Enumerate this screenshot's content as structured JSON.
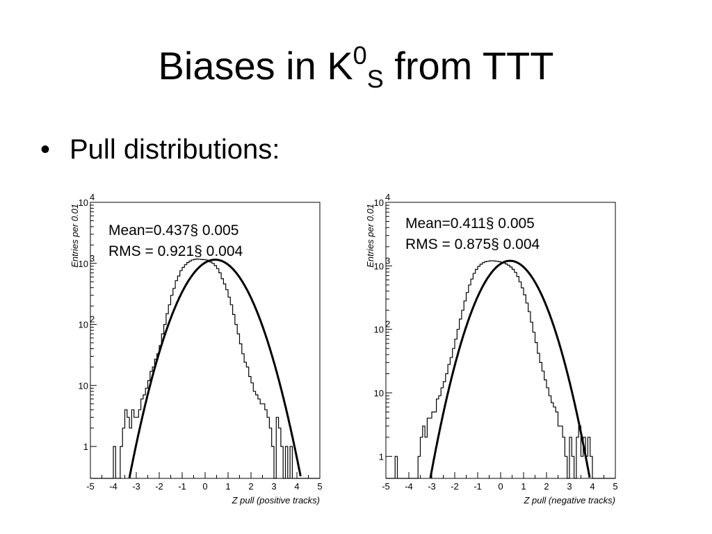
{
  "slide": {
    "title_main": "Biases in K",
    "title_sup": "0",
    "title_sub": "S",
    "title_tail": " from TTT",
    "bullet": "Pull distributions:"
  },
  "chart_data": [
    {
      "type": "line",
      "title": "",
      "xlabel": "Z pull  (positive tracks)",
      "ylabel": "Entries per 0.01",
      "xlim": [
        -5,
        5
      ],
      "ylim": [
        0.3,
        10000
      ],
      "yscale": "log",
      "xticks": [
        -5,
        -4,
        -3,
        -2,
        -1,
        0,
        1,
        2,
        3,
        4,
        5
      ],
      "yticks": [
        {
          "value": 1,
          "label": "1"
        },
        {
          "value": 10,
          "label": "10"
        },
        {
          "value": 100,
          "label": "10",
          "exp": "2"
        },
        {
          "value": 1000,
          "label": "10",
          "exp": "3"
        },
        {
          "value": 10000,
          "label": "10",
          "exp": "4"
        }
      ],
      "stats": [
        "Mean=0.437§ 0.005",
        "RMS = 0.921§ 0.004"
      ],
      "fit": {
        "mean": 0.437,
        "sigma": 0.921,
        "peak": 1150
      },
      "series": [
        {
          "kind": "histogram",
          "x": [
            -5.0,
            -4.0,
            -3.9,
            -3.7,
            -3.6,
            -3.5,
            -3.4,
            -3.3,
            -3.2,
            -3.1,
            -3.0,
            -2.9,
            -2.8,
            -2.7,
            -2.6,
            -2.5,
            -2.4,
            -2.3,
            -2.2,
            -2.1,
            -2.0,
            -1.9,
            -1.8,
            -1.7,
            -1.6,
            -1.5,
            -1.4,
            -1.3,
            -1.2,
            -1.1,
            -1.0,
            -0.9,
            -0.8,
            -0.7,
            -0.6,
            -0.5,
            -0.4,
            -0.3,
            -0.2,
            -0.1,
            0.0,
            0.1,
            0.2,
            0.3,
            0.4,
            0.5,
            0.6,
            0.7,
            0.8,
            0.9,
            1.0,
            1.1,
            1.2,
            1.3,
            1.4,
            1.5,
            1.6,
            1.7,
            1.8,
            1.9,
            2.0,
            2.1,
            2.2,
            2.3,
            2.4,
            2.5,
            2.6,
            2.7,
            2.8,
            2.9,
            3.0,
            3.1,
            3.2,
            3.3,
            3.4,
            3.5,
            3.6,
            3.7,
            3.8,
            3.9,
            4.0,
            4.1,
            4.2,
            4.3,
            5.0
          ],
          "y": [
            0.3,
            1,
            0.3,
            1,
            2,
            4,
            3,
            2,
            4,
            3,
            3,
            4,
            6,
            7,
            9,
            12,
            17,
            20,
            27,
            33,
            45,
            70,
            100,
            150,
            210,
            300,
            390,
            520,
            620,
            760,
            860,
            950,
            1030,
            1090,
            1140,
            1160,
            1180,
            1170,
            1160,
            1150,
            1140,
            1120,
            1050,
            1000,
            920,
            820,
            700,
            560,
            460,
            370,
            280,
            210,
            145,
            100,
            70,
            48,
            33,
            24,
            20,
            14,
            11,
            8,
            7,
            6,
            5,
            5,
            4,
            3,
            2,
            1,
            0.3,
            3,
            2,
            1,
            0.3,
            1,
            0.3,
            1,
            0.3,
            0.3,
            0.3,
            0.3,
            0.3,
            0.3
          ]
        }
      ]
    },
    {
      "type": "line",
      "title": "",
      "xlabel": "Z pull  (negative tracks)",
      "ylabel": "Entries per 0.01",
      "xlim": [
        -5,
        5
      ],
      "ylim": [
        0.45,
        10000
      ],
      "yscale": "log",
      "xticks": [
        -5,
        -4,
        -3,
        -2,
        -1,
        0,
        1,
        2,
        3,
        4,
        5
      ],
      "yticks": [
        {
          "value": 1,
          "label": "1"
        },
        {
          "value": 10,
          "label": "10"
        },
        {
          "value": 100,
          "label": "10",
          "exp": "2"
        },
        {
          "value": 1000,
          "label": "10",
          "exp": "3"
        },
        {
          "value": 10000,
          "label": "10",
          "exp": "4"
        }
      ],
      "stats": [
        "Mean=0.411§ 0.005",
        "RMS = 0.875§ 0.004"
      ],
      "fit": {
        "mean": 0.411,
        "sigma": 0.875,
        "peak": 1200
      },
      "series": [
        {
          "kind": "histogram",
          "x": [
            -5.0,
            -4.6,
            -4.5,
            -3.6,
            -3.5,
            -3.4,
            -3.3,
            -3.2,
            -3.1,
            -3.0,
            -2.9,
            -2.8,
            -2.7,
            -2.6,
            -2.5,
            -2.4,
            -2.3,
            -2.2,
            -2.1,
            -2.0,
            -1.9,
            -1.8,
            -1.7,
            -1.6,
            -1.5,
            -1.4,
            -1.3,
            -1.2,
            -1.1,
            -1.0,
            -0.9,
            -0.8,
            -0.7,
            -0.6,
            -0.5,
            -0.4,
            -0.3,
            -0.2,
            -0.1,
            0.0,
            0.1,
            0.2,
            0.3,
            0.4,
            0.5,
            0.6,
            0.7,
            0.8,
            0.9,
            1.0,
            1.1,
            1.2,
            1.3,
            1.4,
            1.5,
            1.6,
            1.7,
            1.8,
            1.9,
            2.0,
            2.1,
            2.2,
            2.3,
            2.4,
            2.5,
            2.6,
            2.7,
            2.8,
            2.9,
            3.0,
            3.1,
            3.2,
            3.3,
            3.4,
            3.5,
            3.6,
            3.7,
            3.8,
            3.9,
            4.0,
            4.1,
            4.2,
            4.3,
            4.4,
            5.0
          ],
          "y": [
            0.45,
            1,
            0.45,
            1,
            2,
            3,
            2,
            4,
            4,
            5,
            5,
            8,
            9,
            12,
            15,
            20,
            28,
            36,
            50,
            70,
            100,
            145,
            200,
            280,
            380,
            500,
            620,
            760,
            880,
            980,
            1060,
            1120,
            1160,
            1180,
            1200,
            1200,
            1190,
            1180,
            1160,
            1140,
            1110,
            1070,
            1020,
            960,
            880,
            790,
            680,
            560,
            450,
            350,
            260,
            190,
            130,
            90,
            62,
            42,
            30,
            22,
            16,
            12,
            9,
            7,
            6,
            5,
            3,
            3,
            2,
            1,
            0.45,
            2,
            1,
            0.45,
            2,
            3,
            1,
            2,
            1,
            2,
            1,
            0.45,
            0.45,
            0.45,
            0.45,
            0.45
          ]
        }
      ]
    }
  ]
}
